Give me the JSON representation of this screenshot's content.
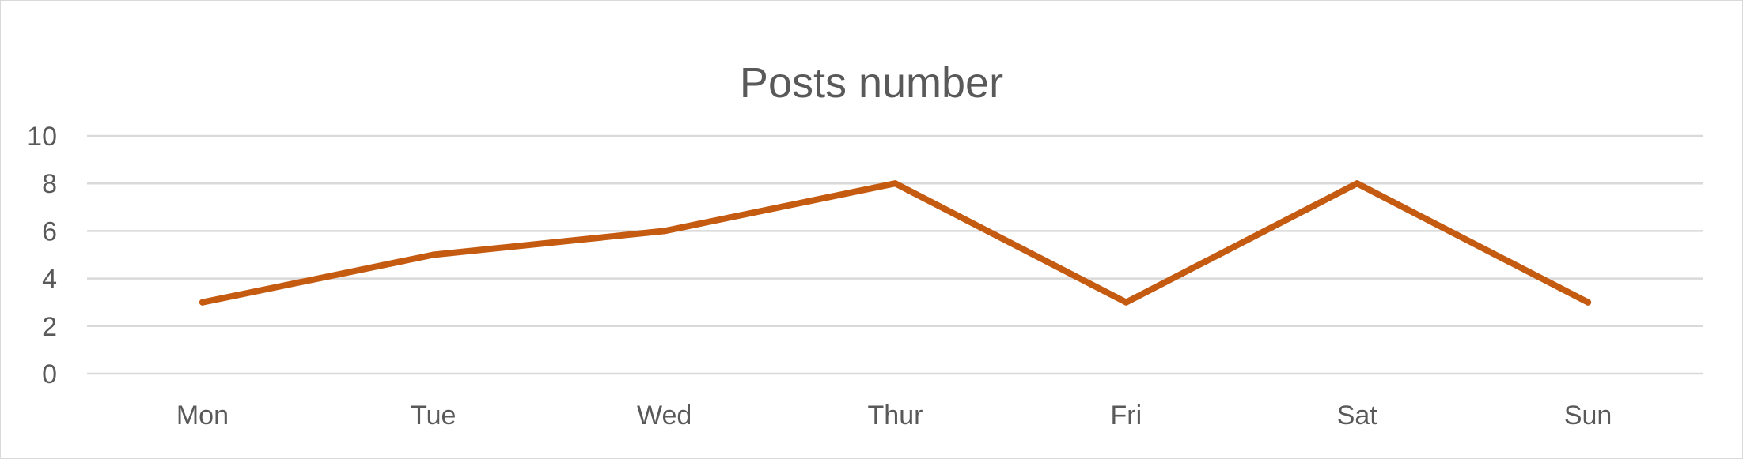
{
  "chart_data": {
    "type": "line",
    "title": "Posts number",
    "xlabel": "",
    "ylabel": "",
    "categories": [
      "Mon",
      "Tue",
      "Wed",
      "Thur",
      "Fri",
      "Sat",
      "Sun"
    ],
    "series": [
      {
        "values": [
          3,
          5,
          6,
          8,
          3,
          8,
          3
        ],
        "color": "#C55A11"
      }
    ],
    "ylim": [
      0,
      10
    ],
    "yticks": [
      0,
      2,
      4,
      6,
      8,
      10
    ],
    "grid": true,
    "legend": "none",
    "colors": {
      "gridline": "#d9d9d9",
      "text": "#595959"
    }
  }
}
